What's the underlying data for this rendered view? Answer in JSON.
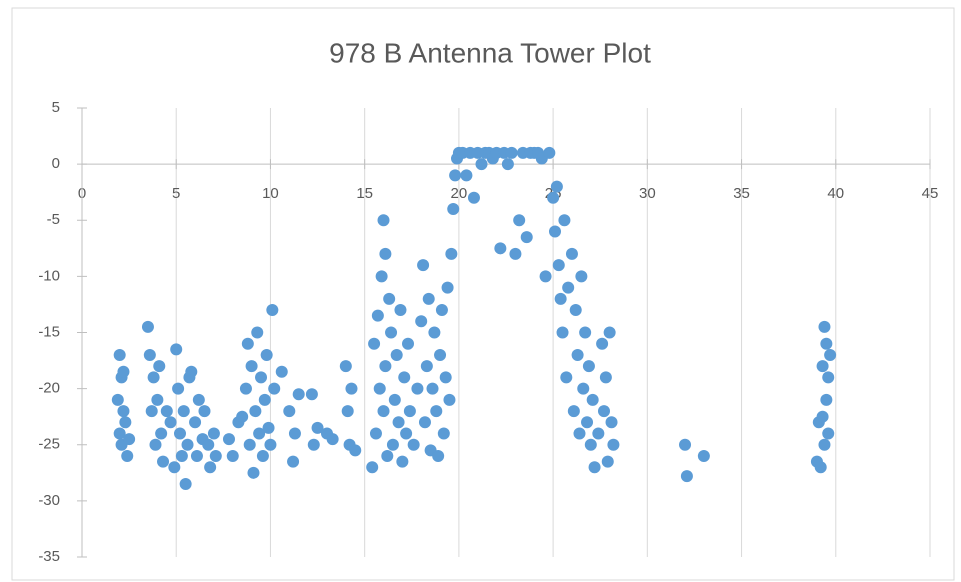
{
  "chart_data": {
    "type": "scatter",
    "title": "978 B Antenna Tower Plot",
    "color": "#5b9bd5",
    "xgrid": true,
    "xlim": [
      0,
      45
    ],
    "xticks": [
      0,
      5,
      10,
      15,
      20,
      25,
      30,
      35,
      40,
      45
    ],
    "ylim": [
      -35,
      5
    ],
    "yticks": [
      5,
      0,
      -5,
      -10,
      -15,
      -20,
      -25,
      -30,
      -35
    ],
    "x": [
      1.9,
      2.0,
      2.0,
      2.1,
      2.1,
      2.2,
      2.2,
      2.3,
      2.4,
      2.5,
      3.5,
      3.6,
      3.7,
      3.8,
      3.9,
      4.0,
      4.1,
      4.2,
      4.3,
      4.5,
      4.7,
      4.9,
      5.0,
      5.1,
      5.2,
      5.3,
      5.4,
      5.5,
      5.6,
      5.7,
      5.8,
      6.0,
      6.1,
      6.2,
      6.4,
      6.5,
      6.7,
      6.8,
      7.0,
      7.1,
      7.8,
      8.0,
      8.3,
      8.5,
      8.7,
      8.8,
      8.9,
      9.0,
      9.1,
      9.2,
      9.3,
      9.4,
      9.5,
      9.6,
      9.7,
      9.8,
      9.9,
      10.0,
      10.1,
      10.2,
      10.6,
      11.0,
      11.2,
      11.3,
      11.5,
      12.2,
      12.3,
      12.5,
      13.0,
      13.3,
      14.0,
      14.1,
      14.2,
      14.3,
      14.5,
      15.4,
      15.5,
      15.6,
      15.7,
      15.8,
      15.9,
      16.0,
      16.0,
      16.1,
      16.1,
      16.2,
      16.3,
      16.4,
      16.5,
      16.6,
      16.7,
      16.8,
      16.9,
      17.0,
      17.1,
      17.2,
      17.3,
      17.4,
      17.6,
      17.8,
      18.0,
      18.1,
      18.2,
      18.3,
      18.4,
      18.5,
      18.6,
      18.7,
      18.8,
      18.9,
      19.0,
      19.1,
      19.2,
      19.3,
      19.4,
      19.5,
      19.6,
      19.7,
      19.8,
      19.9,
      20.0,
      20.2,
      20.4,
      20.6,
      20.8,
      21.0,
      21.2,
      21.4,
      21.6,
      21.8,
      22.0,
      22.2,
      22.4,
      22.6,
      22.8,
      23.0,
      23.2,
      23.4,
      23.6,
      23.8,
      24.0,
      24.2,
      24.4,
      24.6,
      24.8,
      25.0,
      25.1,
      25.2,
      25.3,
      25.4,
      25.5,
      25.6,
      25.7,
      25.8,
      26.0,
      26.1,
      26.2,
      26.3,
      26.4,
      26.5,
      26.6,
      26.7,
      26.8,
      26.9,
      27.0,
      27.1,
      27.2,
      27.4,
      27.6,
      27.7,
      27.8,
      27.9,
      28.0,
      28.1,
      28.2,
      32.0,
      32.1,
      33.0,
      39.0,
      39.1,
      39.2,
      39.3,
      39.4,
      39.4,
      39.5,
      39.5,
      39.6,
      39.6,
      39.7,
      39.3
    ],
    "values": [
      -21,
      -24,
      -17,
      -19,
      -25,
      -22,
      -18.5,
      -23,
      -26,
      -24.5,
      -14.5,
      -17,
      -22,
      -19,
      -25,
      -21,
      -18,
      -24,
      -26.5,
      -22,
      -23,
      -27,
      -16.5,
      -20,
      -24,
      -26,
      -22,
      -28.5,
      -25,
      -19,
      -18.5,
      -23,
      -26,
      -21,
      -24.5,
      -22,
      -25,
      -27,
      -24,
      -26,
      -24.5,
      -26,
      -23,
      -22.5,
      -20,
      -16,
      -25,
      -18,
      -27.5,
      -22,
      -15,
      -24,
      -19,
      -26,
      -21,
      -17,
      -23.5,
      -25,
      -13,
      -20,
      -18.5,
      -22,
      -26.5,
      -24,
      -20.5,
      -20.5,
      -25,
      -23.5,
      -24,
      -24.5,
      -18,
      -22,
      -25,
      -20,
      -25.5,
      -27,
      -16,
      -24,
      -13.5,
      -20,
      -10,
      -5,
      -22,
      -8,
      -18,
      -26,
      -12,
      -15,
      -25,
      -21,
      -17,
      -23,
      -13,
      -26.5,
      -19,
      -24,
      -16,
      -22,
      -25,
      -20,
      -14,
      -9,
      -23,
      -18,
      -12,
      -25.5,
      -20,
      -15,
      -22,
      -26,
      -17,
      -13,
      -24,
      -19,
      -11,
      -21,
      -8,
      -4,
      -1,
      0.5,
      1,
      1,
      -1,
      1,
      -3,
      1,
      0,
      1,
      1,
      0.5,
      1,
      -7.5,
      1,
      0,
      1,
      -8,
      -5,
      1,
      -6.5,
      1,
      1,
      1,
      0.5,
      -10,
      1,
      -3,
      -6,
      -2,
      -9,
      -12,
      -15,
      -5,
      -19,
      -11,
      -8,
      -22,
      -13,
      -17,
      -24,
      -10,
      -20,
      -15,
      -23,
      -18,
      -25,
      -21,
      -27,
      -24,
      -16,
      -22,
      -19,
      -26.5,
      -15,
      -23,
      -25,
      -25,
      -27.8,
      -26,
      -26.5,
      -23,
      -27,
      -18,
      -14.5,
      -25,
      -16,
      -21,
      -19,
      -24,
      -17,
      -22.5
    ]
  }
}
